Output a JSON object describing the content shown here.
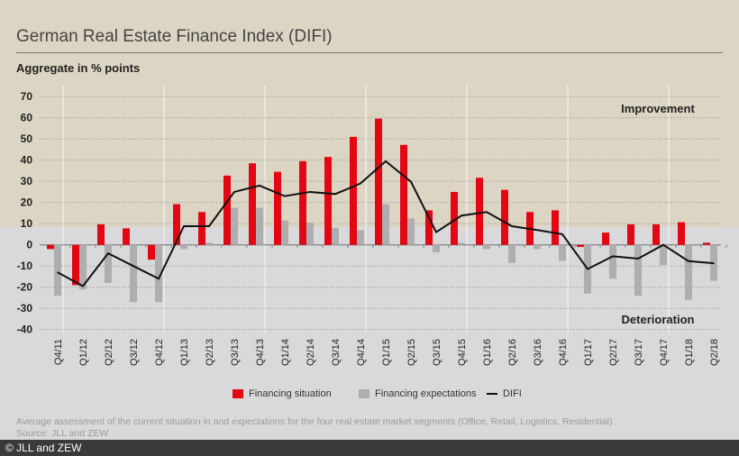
{
  "title": "German Real Estate Finance Index (DIFI)",
  "y_label": "Aggregate in % points",
  "footnote": "Average assessment of the current situation in and expectations for the four real estate market segments (Office, Retail, Logistics, Residential).",
  "source": "Source: JLL and ZEW",
  "copyright": "© JLL and ZEW",
  "colors": {
    "situation": "#e30613",
    "expectations": "#aeaeb0",
    "difi": "#111111"
  },
  "chart_data": {
    "type": "bar",
    "title": "German Real Estate Finance Index (DIFI)",
    "ylabel": "Aggregate in % points",
    "ylim": [
      -40,
      70
    ],
    "yticks": [
      70,
      60,
      50,
      40,
      30,
      20,
      10,
      0,
      -10,
      -20,
      -30,
      -40
    ],
    "annotations": [
      "Improvement",
      "Deterioration"
    ],
    "legend_placement": "bottom",
    "categories": [
      "Q4/11",
      "Q1/12",
      "Q2/12",
      "Q3/12",
      "Q4/12",
      "Q1/13",
      "Q2/13",
      "Q3/13",
      "Q4/13",
      "Q1/14",
      "Q2/14",
      "Q3/14",
      "Q4/14",
      "Q1/15",
      "Q2/15",
      "Q3/15",
      "Q4/15",
      "Q1/16",
      "Q2/16",
      "Q3/16",
      "Q4/16",
      "Q1/17",
      "Q2/17",
      "Q3/17",
      "Q4/17",
      "Q1/18",
      "Q2/18"
    ],
    "series": [
      {
        "name": "Financing situation",
        "type": "bar",
        "values": [
          -2,
          -19,
          9.7,
          7.8,
          -7,
          19.2,
          15.5,
          32.7,
          38.5,
          34.5,
          39.5,
          41.5,
          51,
          59.6,
          47.2,
          16.3,
          25,
          31.7,
          26,
          15.5,
          16.3,
          -1,
          5.8,
          9.7,
          9.7,
          10.7,
          1
        ]
      },
      {
        "name": "Financing expectations",
        "type": "bar",
        "values": [
          -24,
          -21,
          -18,
          -27,
          -27,
          -2,
          1,
          17.5,
          17.5,
          11.5,
          10.5,
          8,
          7,
          19.2,
          12.5,
          -3.5,
          1,
          -2,
          -8.5,
          -2,
          -7.5,
          -23,
          -16,
          -24,
          -9.5,
          -26,
          -17
        ]
      },
      {
        "name": "DIFI",
        "type": "line",
        "values": [
          -13,
          -19.5,
          -4,
          -10,
          -16,
          8.8,
          8.8,
          25,
          28,
          23,
          25,
          24,
          29,
          39.5,
          29.8,
          6,
          13.8,
          15.5,
          8.8,
          7,
          5,
          -11.4,
          -5.4,
          -6.5,
          0,
          -7.7,
          -8.7
        ]
      }
    ]
  }
}
